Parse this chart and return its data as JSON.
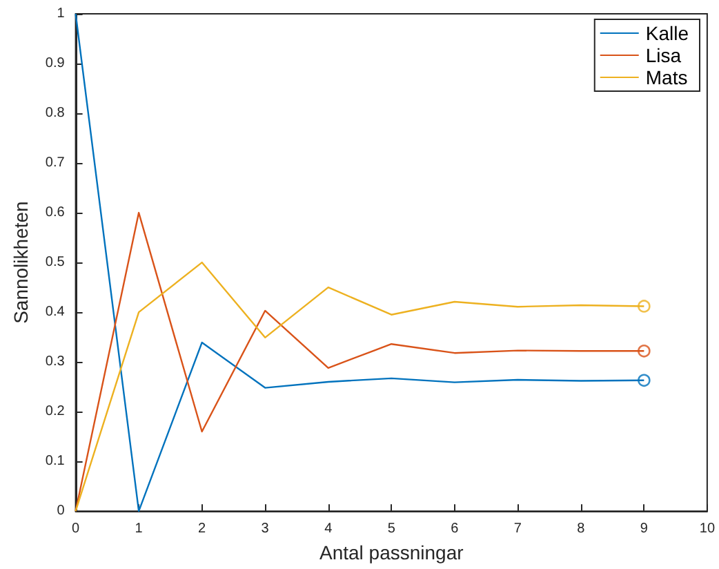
{
  "chart_data": {
    "type": "line",
    "xlabel": "Antal passningar",
    "ylabel": "Sannolikheten",
    "x": [
      0,
      1,
      2,
      3,
      4,
      5,
      6,
      7,
      8,
      9
    ],
    "series": [
      {
        "name": "Kalle",
        "color": "#0072bd",
        "marker": "none",
        "values": [
          1,
          0,
          0.339,
          0.248,
          0.26,
          0.267,
          0.259,
          0.264,
          0.262,
          0.263
        ]
      },
      {
        "name": "Lisa",
        "color": "#d95319",
        "marker": "none",
        "values": [
          0,
          0.6,
          0.16,
          0.403,
          0.288,
          0.336,
          0.318,
          0.323,
          0.322,
          0.322
        ]
      },
      {
        "name": "Mats",
        "color": "#edb120",
        "marker": "none",
        "values": [
          0,
          0.4,
          0.5,
          0.349,
          0.45,
          0.395,
          0.421,
          0.411,
          0.414,
          0.412
        ]
      },
      {
        "type": "scatter",
        "color": "#0072bd",
        "marker": "circle",
        "values": [
          null,
          null,
          null,
          null,
          null,
          null,
          null,
          null,
          null,
          0.263
        ]
      },
      {
        "type": "scatter",
        "color": "#d95319",
        "marker": "circle",
        "values": [
          null,
          null,
          null,
          null,
          null,
          null,
          null,
          null,
          null,
          0.322
        ]
      },
      {
        "type": "scatter",
        "color": "#edb120",
        "marker": "circle",
        "values": [
          null,
          null,
          null,
          null,
          null,
          null,
          null,
          null,
          null,
          0.412
        ]
      }
    ],
    "xlim": [
      0,
      10
    ],
    "xticks": [
      0,
      1,
      2,
      3,
      4,
      5,
      6,
      7,
      8,
      9,
      10
    ],
    "ylim": [
      0,
      1
    ],
    "yticks": [
      0,
      0.1,
      0.2,
      0.3,
      0.4,
      0.5,
      0.6,
      0.7,
      0.8,
      0.9,
      1
    ],
    "grid": false,
    "legend": "top right"
  }
}
